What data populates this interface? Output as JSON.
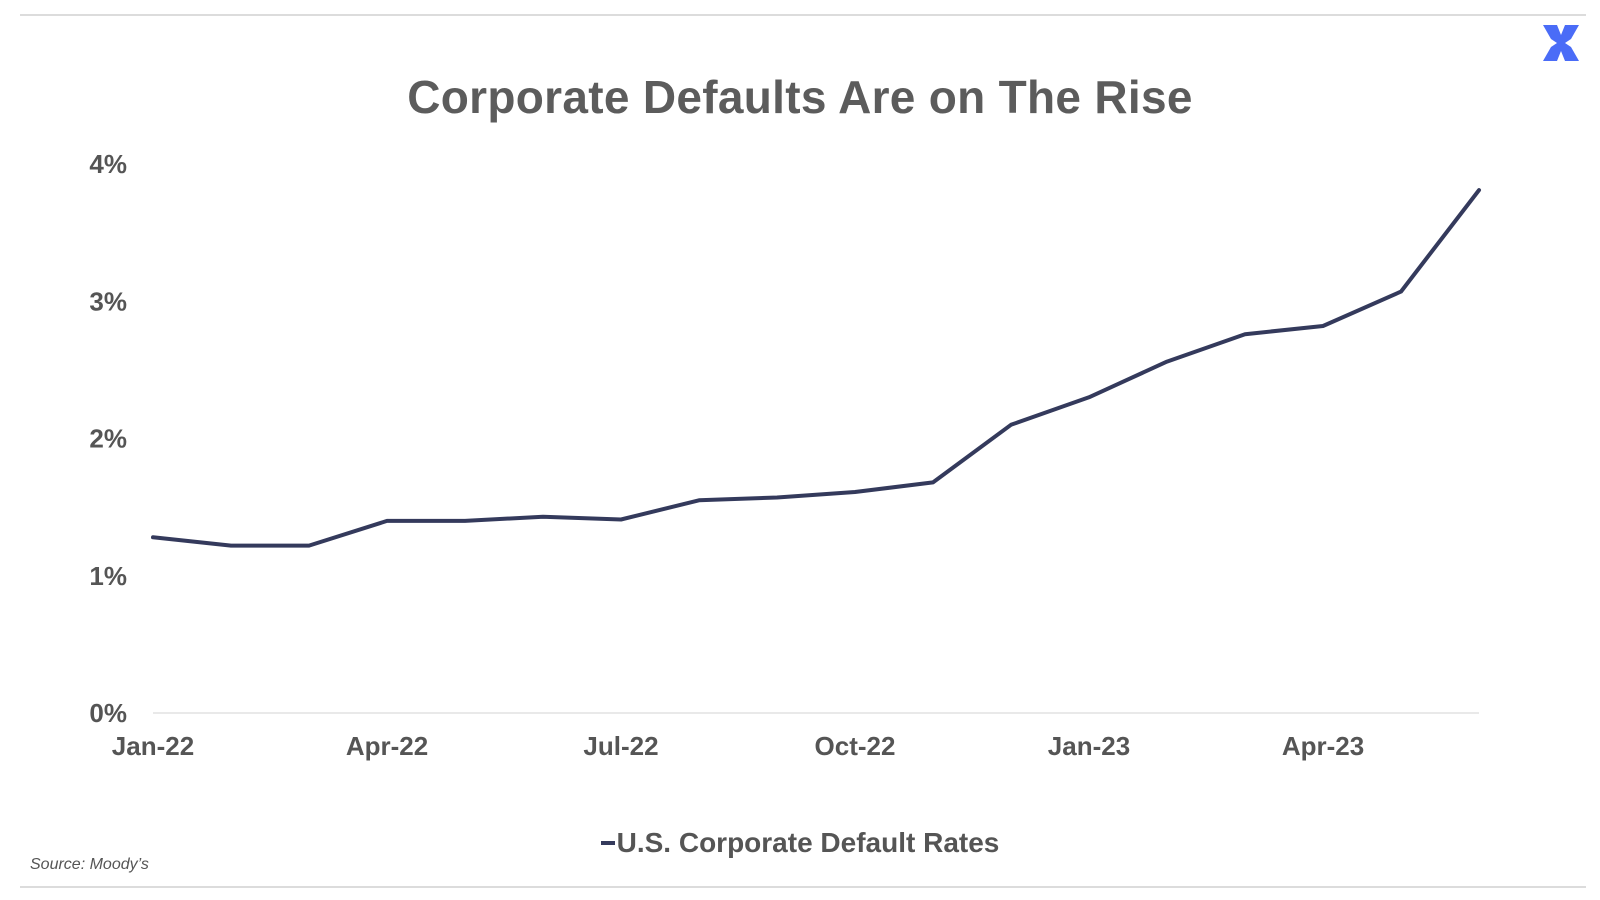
{
  "chart_data": {
    "type": "line",
    "title": "Corporate Defaults Are on The Rise",
    "x": [
      "Jan-22",
      "Feb-22",
      "Mar-22",
      "Apr-22",
      "May-22",
      "Jun-22",
      "Jul-22",
      "Aug-22",
      "Sep-22",
      "Oct-22",
      "Nov-22",
      "Dec-22",
      "Jan-23",
      "Feb-23",
      "Mar-23",
      "Apr-23",
      "May-23",
      "Jun-23"
    ],
    "x_tick_labels": [
      "Jan-22",
      "Apr-22",
      "Jul-22",
      "Oct-22",
      "Jan-23",
      "Apr-23"
    ],
    "y_tick_labels": [
      "0%",
      "1%",
      "2%",
      "3%",
      "4%"
    ],
    "ylim": [
      0,
      4
    ],
    "series": [
      {
        "name": "U.S. Corporate Default Rates",
        "color": "#343a5c",
        "values": [
          1.28,
          1.22,
          1.22,
          1.4,
          1.4,
          1.43,
          1.41,
          1.55,
          1.57,
          1.61,
          1.68,
          2.1,
          2.3,
          2.56,
          2.76,
          2.82,
          3.07,
          3.81
        ]
      }
    ],
    "legend_position": "bottom",
    "grid": false
  },
  "source_note": "Source: Moody’s",
  "logo": {
    "icon": "x-brand-icon",
    "color": "#4a6cf7"
  }
}
